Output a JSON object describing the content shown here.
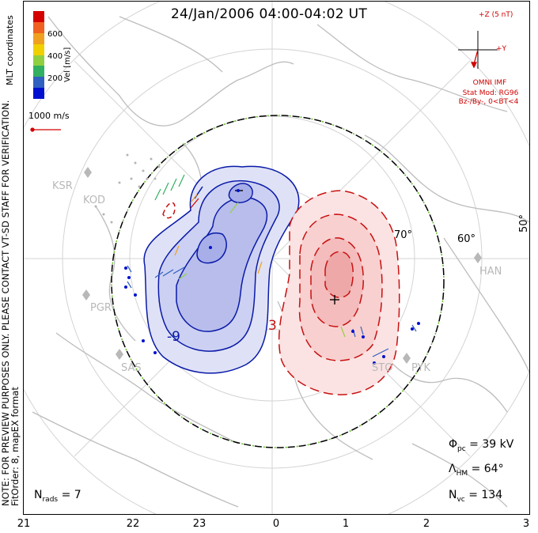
{
  "title": "24/Jan/2006 04:00-04:02 UT",
  "note_lines": [
    "NOTE: FOR PREVIEW PURPOSES ONLY. PLEASE CONTACT VT-SD STAFF FOR VERIFICATION.",
    "FitOrder: 8, mapEX format"
  ],
  "coord_label": "MLT coordinates",
  "colorbar": {
    "label": "Vel [m/s]",
    "ticks": [
      "600",
      "400",
      "200"
    ],
    "colors": [
      "#d40000",
      "#f06020",
      "#f0a020",
      "#f0d000",
      "#90d040",
      "#30b060",
      "#3060c0",
      "#0010d0"
    ]
  },
  "vector_scale_label": "1000 m/s",
  "imf": {
    "z_label": "+Z (5 nT)",
    "y_label": "+Y",
    "source": "OMNI IMF",
    "model": "Stat Mod: RG96",
    "condition": "Bz-/By-, 0<BT<4"
  },
  "lat_labels": [
    "70°",
    "60°",
    "50°"
  ],
  "radar_sites": [
    "KSR",
    "KOD",
    "PGR",
    "SAS",
    "STO",
    "PYK",
    "HAN"
  ],
  "contour_labels": {
    "neg": "-9",
    "pos": "3"
  },
  "stats": {
    "phi_pc_label": "Φ",
    "phi_pc_sub": "pc",
    "phi_pc_value": "= 39 kV",
    "lambda_label": "Λ",
    "lambda_sub": "HM",
    "lambda_value": "= 64°",
    "nvc_label": "N",
    "nvc_sub": "vc",
    "nvc_value": "= 134",
    "nrads_label": "N",
    "nrads_sub": "rads",
    "nrads_value": "= 7"
  },
  "mlt_labels": [
    "21",
    "22",
    "23",
    "0",
    "1",
    "2",
    "3"
  ],
  "colors": {
    "neg_fill": "#c8cdf0",
    "neg_line": "#0a1aa8",
    "pos_fill": "#f8c8c8",
    "pos_line": "#c81010",
    "land": "#c9c9c9",
    "grid": "#d0d0d0"
  }
}
